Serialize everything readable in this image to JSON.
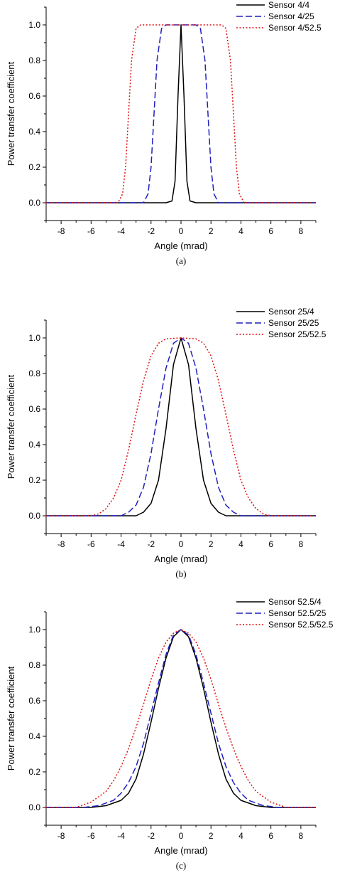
{
  "chart_data": [
    {
      "type": "line",
      "caption": "(a)",
      "xlabel": "Angle (mrad)",
      "ylabel": "Power transfer coefficient",
      "xlim": [
        -9,
        9
      ],
      "ylim": [
        -0.1,
        1.1
      ],
      "xticks": [
        -8,
        -6,
        -4,
        -2,
        0,
        2,
        4,
        6,
        8
      ],
      "yticks": [
        0.0,
        0.2,
        0.4,
        0.6,
        0.8,
        1.0
      ],
      "yticklabels": [
        "0.0",
        "0.2",
        "0.4",
        "0.6",
        "0.8",
        "1.0"
      ],
      "legend_position": "top-right",
      "series": [
        {
          "name": "Sensor 4/4",
          "color": "#000000",
          "dash": "solid",
          "x": [
            -9,
            -1.0,
            -0.6,
            -0.4,
            -0.2,
            0,
            0.2,
            0.4,
            0.6,
            1.0,
            9
          ],
          "y": [
            0.0,
            0.0,
            0.01,
            0.12,
            0.6,
            1.0,
            0.6,
            0.12,
            0.01,
            0.0,
            0.0
          ]
        },
        {
          "name": "Sensor 4/25",
          "color": "#1f1fbf",
          "dash": "dashed",
          "x": [
            -9,
            -2.5,
            -2.2,
            -2.0,
            -1.8,
            -1.6,
            -1.3,
            -1.0,
            0,
            1.0,
            1.3,
            1.6,
            1.8,
            2.0,
            2.2,
            2.5,
            9
          ],
          "y": [
            0.0,
            0.0,
            0.05,
            0.2,
            0.5,
            0.8,
            0.98,
            1.0,
            1.0,
            1.0,
            0.98,
            0.8,
            0.5,
            0.2,
            0.05,
            0.0,
            0.0
          ]
        },
        {
          "name": "Sensor 4/52.5",
          "color": "#e01010",
          "dash": "dotted",
          "x": [
            -9,
            -4.2,
            -3.9,
            -3.7,
            -3.5,
            -3.3,
            -3.0,
            -2.7,
            0,
            2.7,
            3.0,
            3.3,
            3.5,
            3.7,
            3.9,
            4.2,
            9
          ],
          "y": [
            0.0,
            0.0,
            0.05,
            0.2,
            0.5,
            0.8,
            0.98,
            1.0,
            1.0,
            1.0,
            0.98,
            0.8,
            0.5,
            0.2,
            0.05,
            0.0,
            0.0
          ]
        }
      ]
    },
    {
      "type": "line",
      "caption": "(b)",
      "xlabel": "Angle (mrad)",
      "ylabel": "Power transfer coefficient",
      "xlim": [
        -9,
        9
      ],
      "ylim": [
        -0.1,
        1.1
      ],
      "xticks": [
        -8,
        -6,
        -4,
        -2,
        0,
        2,
        4,
        6,
        8
      ],
      "yticks": [
        0.0,
        0.2,
        0.4,
        0.6,
        0.8,
        1.0
      ],
      "yticklabels": [
        "0.0",
        "0.2",
        "0.4",
        "0.6",
        "0.8",
        "1.0"
      ],
      "legend_position": "top-right",
      "series": [
        {
          "name": "Sensor 25/4",
          "color": "#000000",
          "dash": "solid",
          "x": [
            -9,
            -3.0,
            -2.5,
            -2.0,
            -1.5,
            -1.0,
            -0.5,
            0,
            0.5,
            1.0,
            1.5,
            2.0,
            2.5,
            3.0,
            9
          ],
          "y": [
            0.0,
            0.0,
            0.02,
            0.07,
            0.2,
            0.49,
            0.85,
            1.0,
            0.85,
            0.49,
            0.2,
            0.07,
            0.02,
            0.0,
            0.0
          ]
        },
        {
          "name": "Sensor 25/25",
          "color": "#1f1fbf",
          "dash": "dashed",
          "x": [
            -9,
            -4.0,
            -3.5,
            -3.0,
            -2.5,
            -2.0,
            -1.5,
            -1.0,
            -0.5,
            0,
            0.5,
            1.0,
            1.5,
            2.0,
            2.5,
            3.0,
            3.5,
            4.0,
            9
          ],
          "y": [
            0.0,
            0.0,
            0.02,
            0.06,
            0.16,
            0.35,
            0.6,
            0.83,
            0.97,
            1.0,
            0.97,
            0.83,
            0.6,
            0.35,
            0.16,
            0.06,
            0.02,
            0.0,
            0.0
          ]
        },
        {
          "name": "Sensor 25/52.5",
          "color": "#e01010",
          "dash": "dotted",
          "x": [
            -9,
            -6.0,
            -5.5,
            -5.0,
            -4.5,
            -4.0,
            -3.5,
            -3.0,
            -2.5,
            -2.0,
            -1.5,
            -1.0,
            0,
            1.0,
            1.5,
            2.0,
            2.5,
            3.0,
            3.5,
            4.0,
            4.5,
            5.0,
            5.5,
            6.0,
            9
          ],
          "y": [
            0.0,
            0.0,
            0.01,
            0.04,
            0.1,
            0.2,
            0.37,
            0.57,
            0.76,
            0.9,
            0.97,
            0.995,
            1.0,
            0.995,
            0.97,
            0.9,
            0.76,
            0.57,
            0.37,
            0.2,
            0.1,
            0.04,
            0.01,
            0.0,
            0.0
          ]
        }
      ]
    },
    {
      "type": "line",
      "caption": "(c)",
      "xlabel": "Angle (mrad)",
      "ylabel": "Power transfer coefficient",
      "xlim": [
        -9,
        9
      ],
      "ylim": [
        -0.1,
        1.1
      ],
      "xticks": [
        -8,
        -6,
        -4,
        -2,
        0,
        2,
        4,
        6,
        8
      ],
      "yticks": [
        0.0,
        0.2,
        0.4,
        0.6,
        0.8,
        1.0
      ],
      "yticklabels": [
        "0.0",
        "0.2",
        "0.4",
        "0.6",
        "0.8",
        "1.0"
      ],
      "legend_position": "top-right",
      "series": [
        {
          "name": "Sensor 52.5/4",
          "color": "#000000",
          "dash": "solid",
          "x": [
            -9,
            -6.0,
            -5.0,
            -4.0,
            -3.5,
            -3.0,
            -2.5,
            -2.0,
            -1.5,
            -1.0,
            -0.5,
            0,
            0.5,
            1.0,
            1.5,
            2.0,
            2.5,
            3.0,
            3.5,
            4.0,
            5.0,
            6.0,
            9
          ],
          "y": [
            0.0,
            0.0,
            0.01,
            0.04,
            0.08,
            0.16,
            0.3,
            0.48,
            0.67,
            0.84,
            0.96,
            1.0,
            0.96,
            0.84,
            0.67,
            0.48,
            0.3,
            0.16,
            0.08,
            0.04,
            0.01,
            0.0,
            0.0
          ]
        },
        {
          "name": "Sensor 52.5/25",
          "color": "#1f1fbf",
          "dash": "dashed",
          "x": [
            -9,
            -6.5,
            -5.5,
            -4.5,
            -4.0,
            -3.5,
            -3.0,
            -2.5,
            -2.0,
            -1.5,
            -1.0,
            -0.5,
            0,
            0.5,
            1.0,
            1.5,
            2.0,
            2.5,
            3.0,
            3.5,
            4.0,
            4.5,
            5.5,
            6.5,
            9
          ],
          "y": [
            0.0,
            0.0,
            0.01,
            0.04,
            0.08,
            0.14,
            0.23,
            0.36,
            0.53,
            0.7,
            0.86,
            0.97,
            1.0,
            0.97,
            0.86,
            0.7,
            0.53,
            0.36,
            0.23,
            0.14,
            0.08,
            0.04,
            0.01,
            0.0,
            0.0
          ]
        },
        {
          "name": "Sensor 52.5/52.5",
          "color": "#e01010",
          "dash": "dotted",
          "x": [
            -9,
            -7.0,
            -6.0,
            -5.0,
            -4.5,
            -4.0,
            -3.5,
            -3.0,
            -2.5,
            -2.0,
            -1.5,
            -1.0,
            -0.5,
            0,
            0.5,
            1.0,
            1.5,
            2.0,
            2.5,
            3.0,
            3.5,
            4.0,
            4.5,
            5.0,
            6.0,
            7.0,
            9
          ],
          "y": [
            0.0,
            0.0,
            0.03,
            0.09,
            0.15,
            0.23,
            0.33,
            0.45,
            0.58,
            0.72,
            0.84,
            0.93,
            0.98,
            1.0,
            0.98,
            0.93,
            0.84,
            0.72,
            0.58,
            0.45,
            0.33,
            0.23,
            0.15,
            0.09,
            0.03,
            0.0,
            0.0
          ]
        }
      ]
    }
  ]
}
